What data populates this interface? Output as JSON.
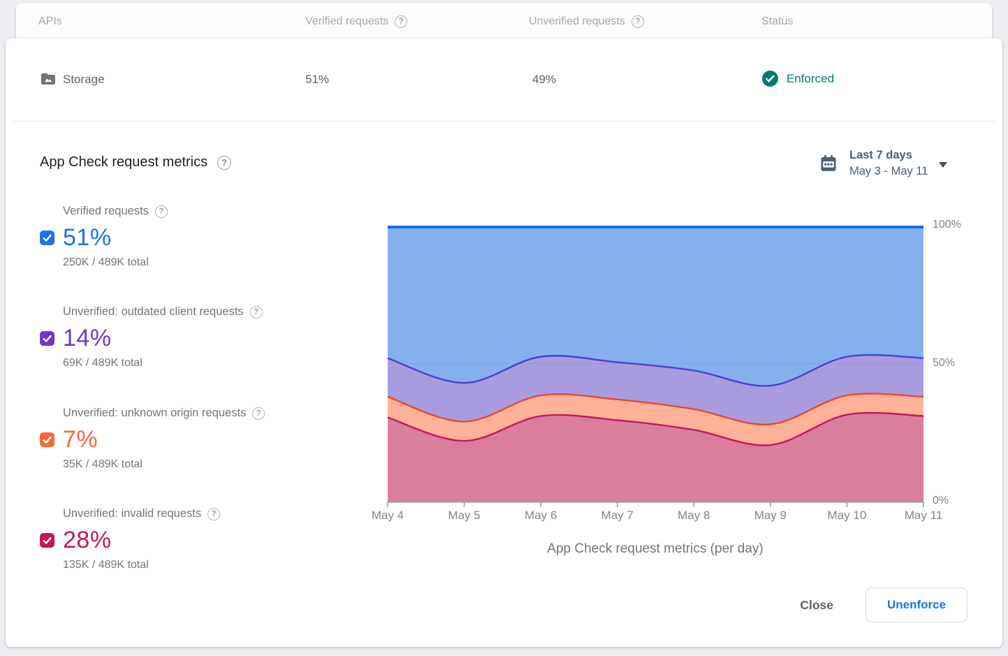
{
  "table": {
    "headers": {
      "apis": "APIs",
      "verified": "Verified requests",
      "unverified": "Unverified requests",
      "status": "Status"
    },
    "row": {
      "name": "Storage",
      "verified_pct": "51%",
      "unverified_pct": "49%",
      "status": "Enforced",
      "status_color": "#00796B"
    }
  },
  "metrics_section": {
    "title": "App Check request metrics",
    "date_selector": {
      "primary": "Last 7 days",
      "secondary": "May 3 - May 11"
    }
  },
  "legend": [
    {
      "label": "Verified requests",
      "percent": "51%",
      "detail": "250K / 489K total",
      "color": "#1A73E8"
    },
    {
      "label": "Unverified: outdated client requests",
      "percent": "14%",
      "detail": "69K / 489K total",
      "color": "#7137C8"
    },
    {
      "label": "Unverified: unknown origin requests",
      "percent": "7%",
      "detail": "35K / 489K total",
      "color": "#F6693F"
    },
    {
      "label": "Unverified: invalid requests",
      "percent": "28%",
      "detail": "135K / 489K total",
      "color": "#C2185B"
    }
  ],
  "chart_data": {
    "type": "area",
    "stacked": true,
    "title": "App Check request metrics",
    "caption": "App Check request metrics (per day)",
    "x": [
      "May 4",
      "May 5",
      "May 6",
      "May 7",
      "May 8",
      "May 9",
      "May 10",
      "May 11"
    ],
    "series": [
      {
        "name": "Unverified: invalid requests",
        "values": [
          30.5,
          22,
          31,
          29.5,
          26,
          20.5,
          31.5,
          31
        ],
        "fill": "#DA7E9E",
        "stroke": "#C2185B"
      },
      {
        "name": "Unverified: unknown origin requests",
        "values": [
          7.5,
          7,
          7.5,
          7.5,
          7.5,
          7.5,
          7,
          7
        ],
        "fill": "#FFB298",
        "stroke": "#E8482F"
      },
      {
        "name": "Unverified: outdated client requests",
        "values": [
          14,
          14,
          14,
          13.5,
          14,
          14,
          14,
          14
        ],
        "fill": "#A99CDE",
        "stroke": "#4B3FCB"
      },
      {
        "name": "Verified requests",
        "values": [
          48,
          57,
          47.5,
          49.5,
          52.5,
          58,
          47.5,
          48
        ],
        "fill": "#85AFEF",
        "stroke": "#1A6DE0"
      }
    ],
    "ylim": [
      0,
      100
    ],
    "yticks": [
      "0%",
      "50%",
      "100%"
    ],
    "grid": "horizontal line at 50%",
    "legend_position": "left"
  },
  "footer": {
    "close_label": "Close",
    "unenforce_label": "Unenforce"
  }
}
